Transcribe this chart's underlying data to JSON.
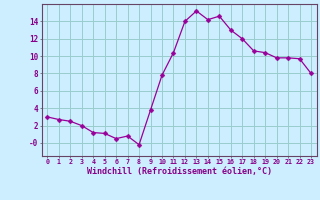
{
  "x": [
    0,
    1,
    2,
    3,
    4,
    5,
    6,
    7,
    8,
    9,
    10,
    11,
    12,
    13,
    14,
    15,
    16,
    17,
    18,
    19,
    20,
    21,
    22,
    23
  ],
  "y": [
    3.0,
    2.7,
    2.5,
    2.0,
    1.2,
    1.1,
    0.5,
    0.8,
    -0.2,
    3.8,
    7.8,
    10.4,
    14.0,
    15.2,
    14.2,
    14.6,
    13.0,
    12.0,
    10.6,
    10.4,
    9.8,
    9.8,
    9.7,
    8.0
  ],
  "line_color": "#990099",
  "marker": "D",
  "marker_size": 2.5,
  "bg_color": "#cceeff",
  "grid_color": "#99cccc",
  "xlabel": "Windchill (Refroidissement éolien,°C)",
  "xlabel_color": "#880088",
  "tick_color": "#880088",
  "spine_color": "#664466",
  "ylim": [
    -1.5,
    16.0
  ],
  "xlim": [
    -0.5,
    23.5
  ],
  "yticks": [
    0,
    2,
    4,
    6,
    8,
    10,
    12,
    14
  ],
  "ytick_labels": [
    "-0",
    "2",
    "4",
    "6",
    "8",
    "10",
    "12",
    "14"
  ],
  "xticks": [
    0,
    1,
    2,
    3,
    4,
    5,
    6,
    7,
    8,
    9,
    10,
    11,
    12,
    13,
    14,
    15,
    16,
    17,
    18,
    19,
    20,
    21,
    22,
    23
  ]
}
